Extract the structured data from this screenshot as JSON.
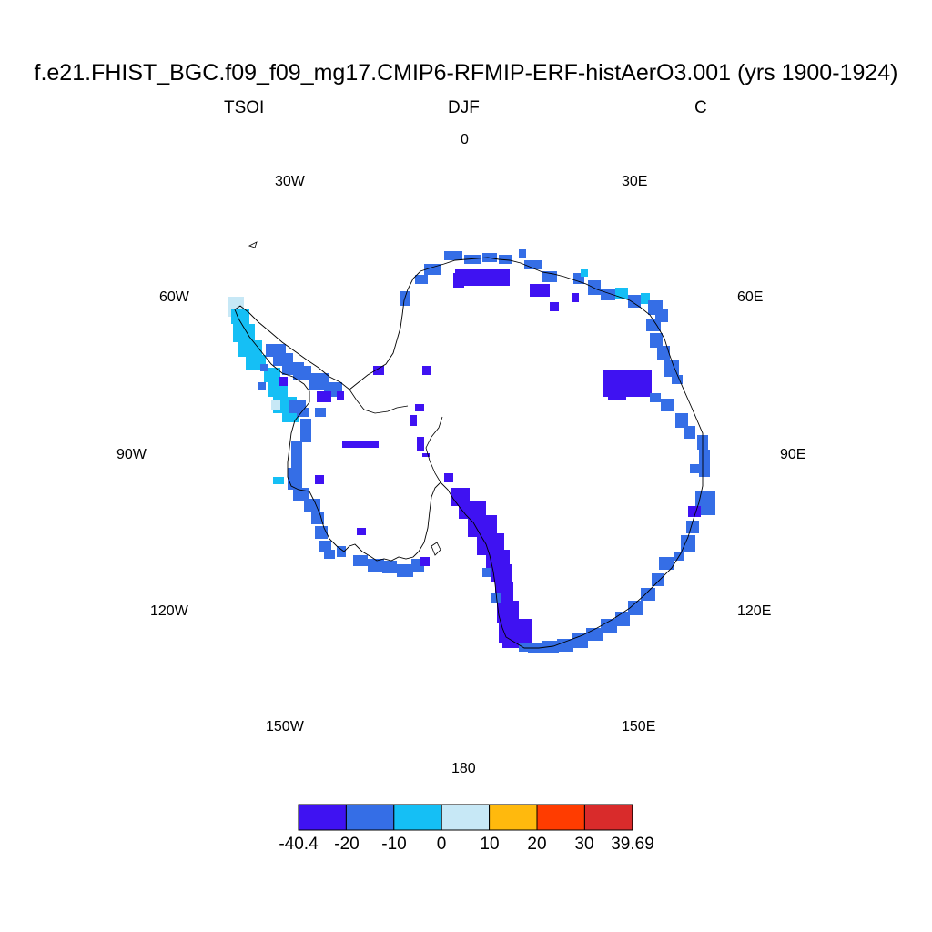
{
  "header": {
    "title": "f.e21.FHIST_BGC.f09_f09_mg17.CMIP6-RFMIP-ERF-histAerO3.001 (yrs 1900-1924)",
    "left": "TSOI",
    "center": "DJF",
    "right": "C"
  },
  "longitude_labels": [
    "0",
    "30E",
    "60E",
    "90E",
    "120E",
    "150E",
    "180",
    "150W",
    "120W",
    "90W",
    "60W",
    "30W"
  ],
  "colorbar": {
    "labels": [
      "-40.4",
      "-20",
      "-10",
      "0",
      "10",
      "20",
      "30",
      "39.69"
    ],
    "colors": [
      "#3f12f2",
      "#356ee6",
      "#15bff5",
      "#c7e8f6",
      "#ffb90d",
      "#ff3c00",
      "#d92b2b"
    ]
  },
  "map": {
    "projection": "south-polar-stereographic",
    "coastline_color": "#000000",
    "field_colors": {
      "lt_m20": "#3f12f2",
      "m20_m10": "#356ee6",
      "m10_0": "#15bff5",
      "0_10": "#c7e8f6"
    }
  }
}
